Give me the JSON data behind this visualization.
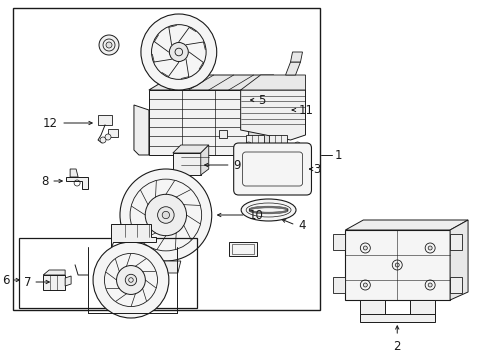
{
  "bg_color": "#ffffff",
  "line_color": "#1a1a1a",
  "border_color": "#1a1a1a",
  "fig_width": 4.89,
  "fig_height": 3.6,
  "dpi": 100,
  "label_fontsize": 8.5
}
